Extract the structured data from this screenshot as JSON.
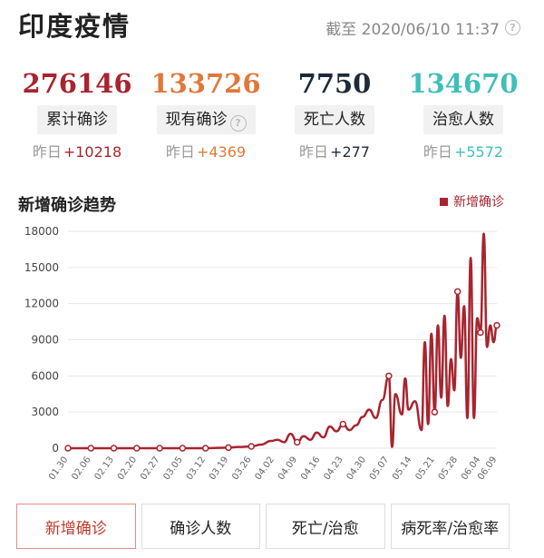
{
  "header": {
    "title": "印度疫情",
    "as_of": "截至 2020/06/10 11:37"
  },
  "stats": [
    {
      "value": "276146",
      "label": "累计确诊",
      "delta_prefix": "昨日",
      "delta": "+10218",
      "color": "#a8242e",
      "delta_color": "#a8242e"
    },
    {
      "value": "133726",
      "label": "现有确诊",
      "delta_prefix": "昨日",
      "delta": "+4369",
      "color": "#e0783a",
      "delta_color": "#e0783a"
    },
    {
      "value": "7750",
      "label": "死亡人数",
      "delta_prefix": "昨日",
      "delta": "+277",
      "color": "#1c2b39",
      "delta_color": "#1c2b39"
    },
    {
      "value": "134670",
      "label": "治愈人数",
      "delta_prefix": "昨日",
      "delta": "+5572",
      "color": "#3fbfb9",
      "delta_color": "#3fbfb9"
    }
  ],
  "chart": {
    "title": "新增确诊趋势",
    "legend": "新增确诊"
  },
  "chart_data": {
    "type": "line",
    "series": [
      {
        "name": "新增确诊",
        "color": "#a8242e"
      }
    ],
    "ylim": [
      0,
      18000
    ],
    "yticks": [
      0,
      3000,
      6000,
      9000,
      12000,
      15000,
      18000
    ],
    "xticks": [
      "01.30",
      "02.06",
      "02.13",
      "02.20",
      "02.27",
      "03.05",
      "03.12",
      "03.19",
      "03.26",
      "04.02",
      "04.09",
      "04.16",
      "04.23",
      "04.30",
      "05.07",
      "05.14",
      "05.21",
      "05.28",
      "06.04",
      "06.09"
    ],
    "x": [
      "01.30",
      "02.06",
      "02.13",
      "02.20",
      "02.27",
      "03.05",
      "03.12",
      "03.19",
      "03.22",
      "03.26",
      "03.29",
      "04.01",
      "04.03",
      "04.05",
      "04.07",
      "04.09",
      "04.11",
      "04.13",
      "04.15",
      "04.17",
      "04.19",
      "04.21",
      "04.23",
      "04.25",
      "04.27",
      "04.29",
      "05.01",
      "05.03",
      "05.05",
      "05.07",
      "05.08",
      "05.09",
      "05.11",
      "05.12",
      "05.13",
      "05.15",
      "05.17",
      "05.18",
      "05.19",
      "05.20",
      "05.21",
      "05.22",
      "05.23",
      "05.24",
      "05.25",
      "05.26",
      "05.27",
      "05.28",
      "05.29",
      "05.30",
      "05.31",
      "06.01",
      "06.02",
      "06.03",
      "06.04",
      "06.05",
      "06.06",
      "06.07",
      "06.08",
      "06.09"
    ],
    "values": [
      0,
      0,
      0,
      0,
      0,
      0,
      0,
      50,
      100,
      150,
      300,
      600,
      700,
      500,
      1200,
      500,
      1000,
      700,
      1300,
      900,
      1800,
      1400,
      2000,
      1500,
      1900,
      2600,
      3200,
      2500,
      4000,
      6000,
      100,
      4500,
      2800,
      5800,
      3200,
      3900,
      1500,
      8800,
      2000,
      9500,
      3000,
      10200,
      4200,
      11000,
      3500,
      7400,
      4800,
      13000,
      7500,
      11800,
      2500,
      15800,
      2500,
      10800,
      9600,
      17800,
      8400,
      10200,
      8800,
      10200
    ],
    "markers": [
      "01.30",
      "02.06",
      "02.13",
      "02.20",
      "02.27",
      "03.05",
      "03.12",
      "03.19",
      "03.26",
      "04.02",
      "04.09",
      "04.16",
      "04.23",
      "04.30",
      "05.07",
      "05.14",
      "05.21",
      "05.28",
      "06.04",
      "06.09"
    ]
  },
  "tabs": [
    {
      "label": "新增确诊",
      "active": true
    },
    {
      "label": "确诊人数",
      "active": false
    },
    {
      "label": "死亡/治愈",
      "active": false
    },
    {
      "label": "病死率/治愈率",
      "active": false
    }
  ]
}
